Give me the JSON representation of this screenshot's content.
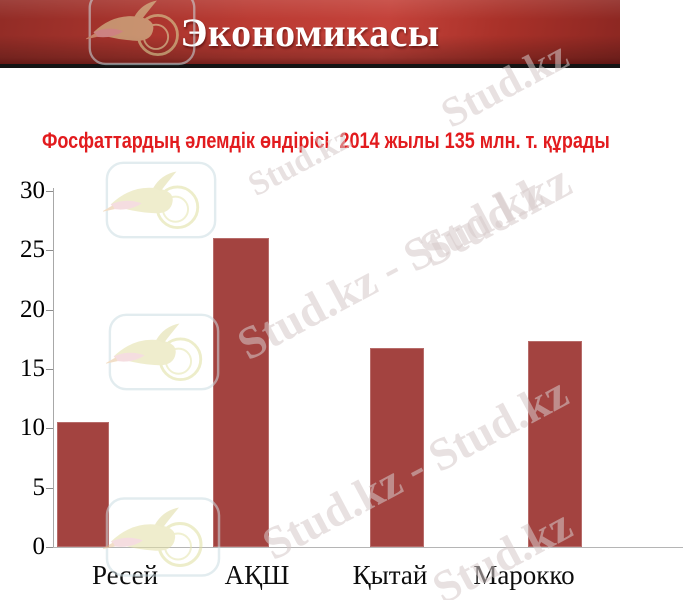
{
  "header": {
    "title": "Экономикасы"
  },
  "subtitle": "Фосфаттардың әлемдік өндірісі  2014 жылы 135 млн. т. құрады",
  "watermark": {
    "short": "Stud.kz",
    "long": "Stud.kz - Stud.kz",
    "logo": "stud-kz-hummingbird-logo"
  },
  "colors": {
    "bar": "#a34340",
    "subtitle_red": "#e21b1e",
    "banner_mid_red": "#c4423a",
    "banner_dark_red": "#8c2722",
    "underline_black": "#141414",
    "axis_gray": "#a8a8a8"
  },
  "chart_data": {
    "type": "bar",
    "title": "Фосфаттардың әлемдік өндірісі  2014 жылы 135 млн. т. құрады",
    "categories": [
      "Ресей",
      "АҚШ",
      "Қытай",
      "Марокко"
    ],
    "values": [
      10.5,
      26,
      16.8,
      17.4
    ],
    "xlabel": "",
    "ylabel": "",
    "ylim": [
      0,
      30
    ],
    "yticks": [
      0,
      5,
      10,
      15,
      20,
      25,
      30
    ],
    "grid": false,
    "legend": false,
    "bar_color": "#a34340"
  }
}
